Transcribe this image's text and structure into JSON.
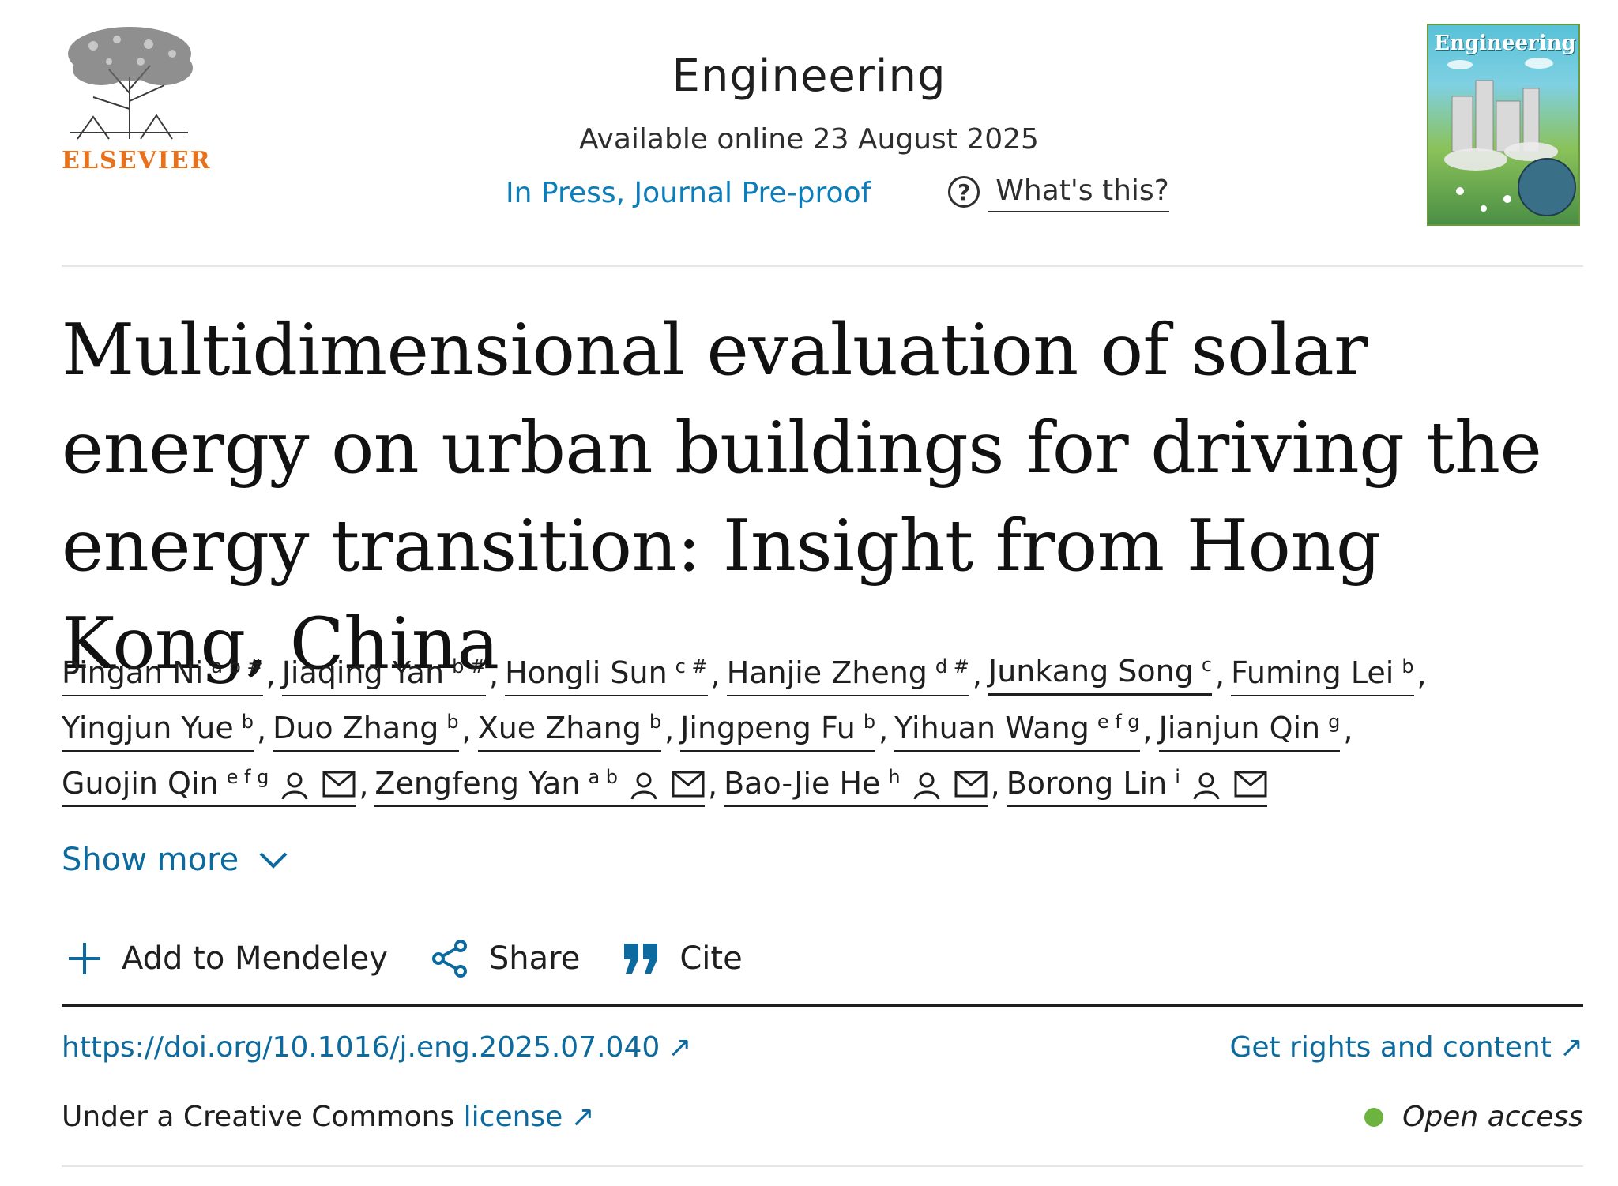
{
  "header": {
    "publisher": "ELSEVIER",
    "journal": "Engineering",
    "available": "Available online 23 August 2025",
    "status": "In Press, Journal Pre-proof",
    "whats_this": "What's this?",
    "cover_title": "Engineering"
  },
  "article": {
    "title": "Multidimensional evaluation of solar energy on urban buildings for driving the energy transition: Insight from Hong Kong, China"
  },
  "authors": [
    [
      {
        "name": "Pingan Ni",
        "sup": "a b #"
      },
      {
        "name": "Jiaqing Yan",
        "sup": "b #"
      },
      {
        "name": "Hongli Sun",
        "sup": "c #"
      },
      {
        "name": "Hanjie Zheng",
        "sup": "d #"
      },
      {
        "name": "Junkang Song",
        "sup": "c"
      },
      {
        "name": "Fuming Lei",
        "sup": "b"
      }
    ],
    [
      {
        "name": "Yingjun Yue",
        "sup": "b"
      },
      {
        "name": "Duo Zhang",
        "sup": "b"
      },
      {
        "name": "Xue Zhang",
        "sup": "b"
      },
      {
        "name": "Jingpeng Fu",
        "sup": "b"
      },
      {
        "name": "Yihuan Wang",
        "sup": "e f g"
      },
      {
        "name": "Jianjun Qin",
        "sup": "g"
      }
    ],
    [
      {
        "name": "Guojin Qin",
        "sup": "e f g"
      },
      {
        "name": "Zengfeng Yan",
        "sup": "a b"
      },
      {
        "name": "Bao-Jie He",
        "sup": "h"
      },
      {
        "name": "Borong Lin",
        "sup": "i"
      }
    ]
  ],
  "show_more": "Show more",
  "actions": {
    "mendeley": "Add to Mendeley",
    "share": "Share",
    "cite": "Cite"
  },
  "footer": {
    "doi": "https://doi.org/10.1016/j.eng.2025.07.040",
    "rights": "Get rights and content",
    "license_prefix": "Under a Creative Commons",
    "license_link": "license",
    "open_access": "Open access",
    "external_arrow": "↗"
  },
  "colors": {
    "link": "#0c6a9e",
    "press": "#0c7dbb",
    "elsevier": "#e9711c",
    "open_access_dot": "#6cb33f",
    "cite_icon": "#0c6a9e"
  },
  "icons": [
    "elsevier-tree-logo",
    "question-icon",
    "journal-cover",
    "person-icon",
    "mail-icon",
    "chevron-down-icon",
    "plus-icon",
    "share-icon",
    "quote-icon",
    "external-link-icon"
  ]
}
